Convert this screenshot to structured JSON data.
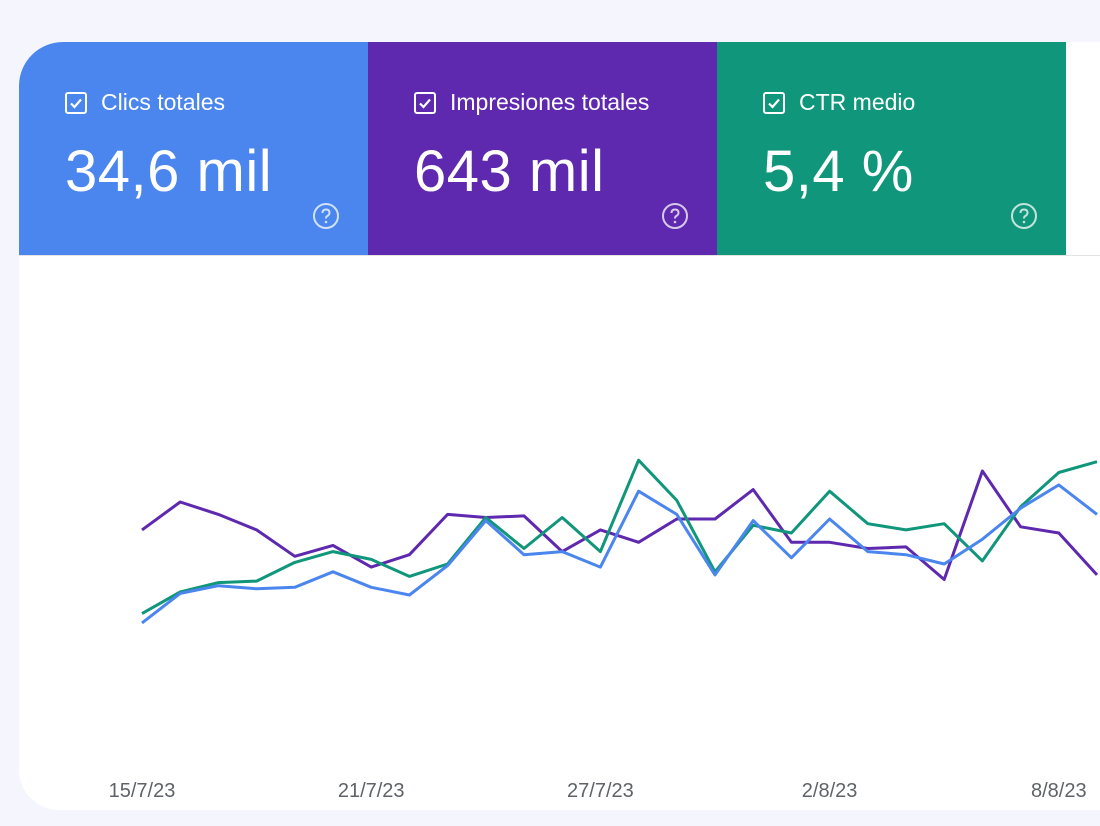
{
  "metrics": [
    {
      "label": "Clics totales",
      "value": "34,6 mil",
      "color": "#4a86ee",
      "checked": true,
      "icon": "help-circle-icon"
    },
    {
      "label": "Impresiones totales",
      "value": "643 mil",
      "color": "#5e29ae",
      "checked": true,
      "icon": "help-circle-icon"
    },
    {
      "label": "CTR medio",
      "value": "5,4 %",
      "color": "#10967a",
      "checked": true,
      "icon": "help-circle-icon"
    }
  ],
  "chart_data": {
    "type": "line",
    "x_ticks": [
      "15/7/23",
      "21/7/23",
      "27/7/23",
      "2/8/23",
      "8/8/23"
    ],
    "series": [
      {
        "name": "Impresiones totales",
        "color": "#5e29ae",
        "values": [
          82,
          100,
          92,
          82,
          65,
          72,
          58,
          66,
          92,
          90,
          91,
          68,
          82,
          74,
          89,
          89,
          108,
          74,
          74,
          70,
          71,
          50,
          120,
          84,
          80,
          53
        ]
      },
      {
        "name": "CTR medio",
        "color": "#10967a",
        "values": [
          28,
          42,
          48,
          49,
          61,
          68,
          63,
          52,
          60,
          90,
          70,
          90,
          68,
          127,
          101,
          55,
          85,
          80,
          107,
          86,
          82,
          86,
          62,
          97,
          119,
          126
        ]
      },
      {
        "name": "Clics totales",
        "color": "#4a86ee",
        "values": [
          22,
          41,
          46,
          44,
          45,
          55,
          45,
          40,
          59,
          88,
          66,
          68,
          58,
          107,
          92,
          53,
          88,
          64,
          89,
          68,
          66,
          60,
          76,
          96,
          111,
          92
        ]
      }
    ]
  }
}
